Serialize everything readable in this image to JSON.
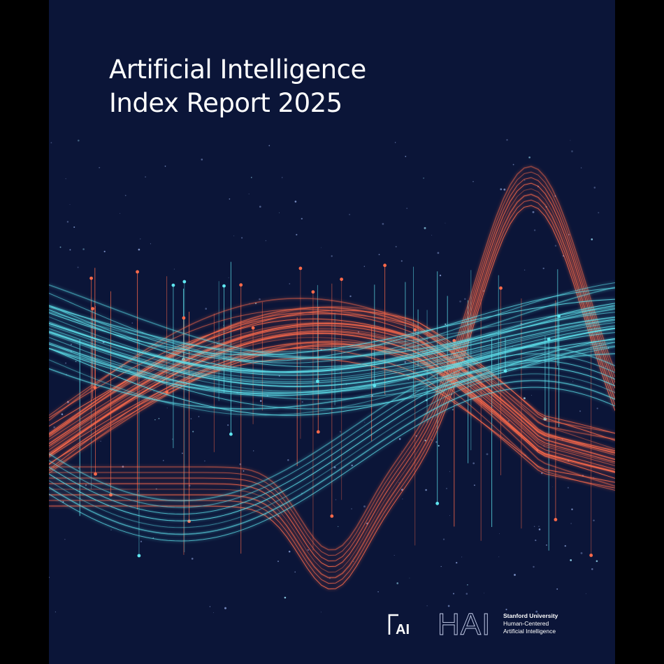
{
  "title": {
    "line1": "Artificial Intelligence",
    "line2": "Index Report 2025"
  },
  "logos": {
    "ai_mark": "AI",
    "hai_mark": "HAI",
    "hai_line1": "Stanford University",
    "hai_line2": "Human-Centered",
    "hai_line3": "Artificial Intelligence"
  },
  "colors": {
    "background": "#0b1538",
    "cyan": "#5fe6f0",
    "orange": "#ff6a4a",
    "title": "#ffffff"
  }
}
